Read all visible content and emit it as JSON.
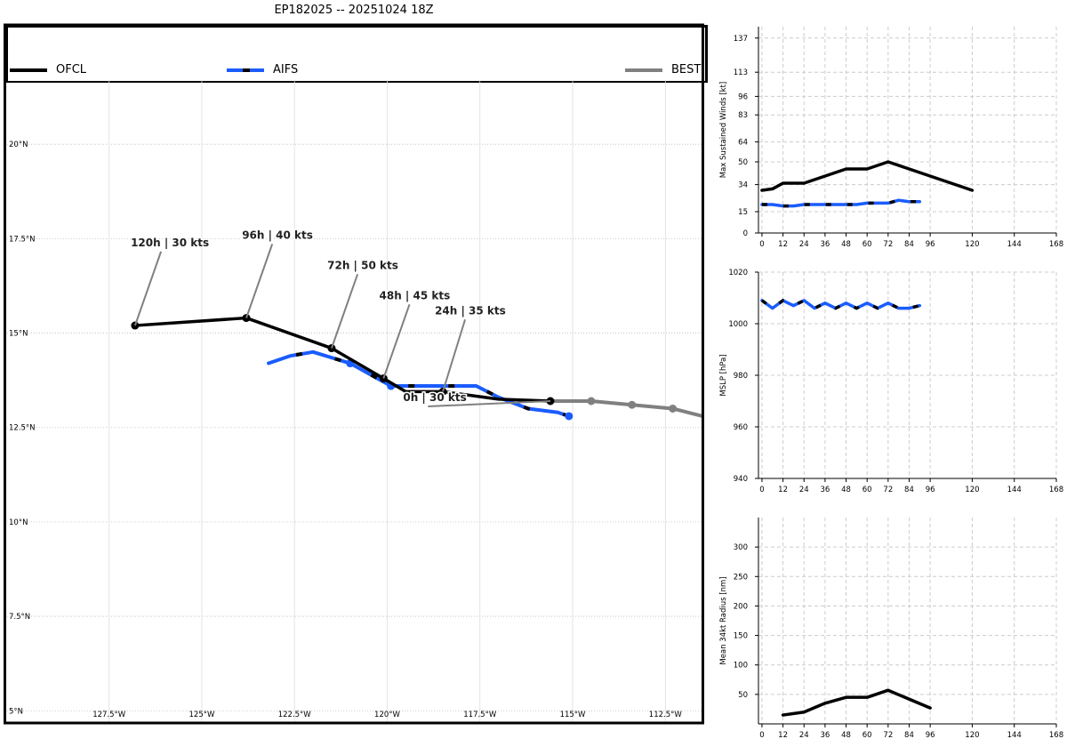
{
  "title": "EP182025 -- 20251024 18Z",
  "legend": [
    {
      "label": "OFCL",
      "color": "#000000"
    },
    {
      "label": "AIFS",
      "color": "#1a5cff",
      "dash_color": "#000000"
    },
    {
      "label": "BEST",
      "color": "#808080"
    }
  ],
  "map": {
    "lon_range": [
      -130.25,
      -111.5
    ],
    "lat_range": [
      4.7,
      21.7
    ],
    "lon_ticks": [
      {
        "value": -127.5,
        "label": "127.5°W"
      },
      {
        "value": -125,
        "label": "125°W"
      },
      {
        "value": -122.5,
        "label": "122.5°W"
      },
      {
        "value": -120,
        "label": "120°W"
      },
      {
        "value": -117.5,
        "label": "117.5°W"
      },
      {
        "value": -115,
        "label": "115°W"
      },
      {
        "value": -112.5,
        "label": "112.5°W"
      }
    ],
    "lat_ticks": [
      {
        "value": 20,
        "label": "20°N"
      },
      {
        "value": 17.5,
        "label": "17.5°N"
      },
      {
        "value": 15,
        "label": "15°N"
      },
      {
        "value": 12.5,
        "label": "12.5°N"
      },
      {
        "value": 10,
        "label": "10°N"
      },
      {
        "value": 7.5,
        "label": "7.5°N"
      },
      {
        "value": 5,
        "label": "5°N"
      }
    ],
    "tracks": {
      "ofcl": {
        "lon": [
          -115.6,
          -117.0,
          -118.5,
          -119.5,
          -120.1,
          -121.5,
          -123.8,
          -126.8
        ],
        "lat": [
          13.2,
          13.25,
          13.45,
          13.45,
          13.8,
          14.6,
          15.4,
          15.2
        ],
        "markers": [
          0,
          2,
          4,
          5,
          6,
          7
        ]
      },
      "aifs": {
        "lon": [
          -115.1,
          -115.4,
          -116.2,
          -117.0,
          -117.6,
          -118.4,
          -119.9,
          -121.0,
          -122.0,
          -122.6,
          -123.2
        ],
        "lat": [
          12.8,
          12.9,
          13.0,
          13.3,
          13.6,
          13.6,
          13.6,
          14.2,
          14.5,
          14.4,
          14.2
        ],
        "markers": [
          0,
          6,
          7
        ]
      },
      "best": {
        "lon": [
          -111.5,
          -112.3,
          -113.4,
          -114.5,
          -115.6
        ],
        "lat": [
          12.8,
          13.0,
          13.1,
          13.2,
          13.2
        ],
        "markers": [
          1,
          2,
          3
        ]
      }
    },
    "annotations": [
      {
        "label": "0h | 30 kts",
        "lon": -115.6,
        "lat": 13.2,
        "text_lon": -118.9,
        "text_lat": 13.2
      },
      {
        "label": "24h | 35 kts",
        "lon": -118.5,
        "lat": 13.45,
        "text_lon": -117.9,
        "text_lat": 15.5
      },
      {
        "label": "48h | 45 kts",
        "lon": -120.1,
        "lat": 13.8,
        "text_lon": -119.4,
        "text_lat": 15.9
      },
      {
        "label": "72h | 50 kts",
        "lon": -121.5,
        "lat": 14.6,
        "text_lon": -120.8,
        "text_lat": 16.7
      },
      {
        "label": "96h | 40 kts",
        "lon": -123.8,
        "lat": 15.4,
        "text_lon": -123.1,
        "text_lat": 17.5
      },
      {
        "label": "120h | 30 kts",
        "lon": -126.8,
        "lat": 15.2,
        "text_lon": -126.1,
        "text_lat": 17.3
      }
    ]
  },
  "chart_data": [
    {
      "type": "line",
      "title": "",
      "xlabel": "",
      "ylabel": "Max Sustained Winds [kt]",
      "xlim": [
        -2,
        168
      ],
      "ylim": [
        0,
        145
      ],
      "xticks": [
        0,
        12,
        24,
        36,
        48,
        60,
        72,
        84,
        96,
        120,
        144,
        168
      ],
      "yticks": [
        0,
        15,
        34,
        50,
        64,
        83,
        96,
        113,
        137
      ],
      "series": [
        {
          "name": "OFCL",
          "color": "#000000",
          "x": [
            0,
            6,
            12,
            24,
            36,
            48,
            60,
            72,
            96,
            120
          ],
          "y": [
            30,
            31,
            35,
            35,
            40,
            45,
            45,
            50,
            40,
            30
          ]
        },
        {
          "name": "AIFS",
          "color": "#1a5cff",
          "x": [
            0,
            6,
            12,
            18,
            24,
            30,
            36,
            42,
            48,
            54,
            60,
            66,
            72,
            78,
            84,
            90
          ],
          "y": [
            20,
            20,
            19,
            19,
            20,
            20,
            20,
            20,
            20,
            20,
            21,
            21,
            21,
            23,
            22,
            22
          ]
        }
      ]
    },
    {
      "type": "line",
      "title": "",
      "xlabel": "",
      "ylabel": "MSLP [hPa]",
      "xlim": [
        -2,
        168
      ],
      "ylim": [
        940,
        1020
      ],
      "xticks": [
        0,
        12,
        24,
        36,
        48,
        60,
        72,
        84,
        96,
        120,
        144,
        168
      ],
      "yticks": [
        940,
        960,
        980,
        1000,
        1020
      ],
      "series": [
        {
          "name": "AIFS",
          "color": "#1a5cff",
          "x": [
            0,
            6,
            12,
            18,
            24,
            30,
            36,
            42,
            48,
            54,
            60,
            66,
            72,
            78,
            84,
            90
          ],
          "y": [
            1009,
            1006,
            1009,
            1007,
            1009,
            1006,
            1008,
            1006,
            1008,
            1006,
            1008,
            1006,
            1008,
            1006,
            1006,
            1007
          ]
        }
      ]
    },
    {
      "type": "line",
      "title": "",
      "xlabel": "",
      "ylabel": "Mean 34kt Radius [nm]",
      "xlim": [
        -2,
        168
      ],
      "ylim": [
        0,
        350
      ],
      "xticks": [
        0,
        12,
        24,
        36,
        48,
        60,
        72,
        84,
        96,
        120,
        144,
        168
      ],
      "yticks": [
        50,
        100,
        150,
        200,
        250,
        300
      ],
      "series": [
        {
          "name": "OFCL",
          "color": "#000000",
          "x": [
            12,
            24,
            36,
            48,
            60,
            72,
            96
          ],
          "y": [
            15,
            20,
            35,
            45,
            45,
            57,
            27
          ]
        }
      ]
    }
  ]
}
